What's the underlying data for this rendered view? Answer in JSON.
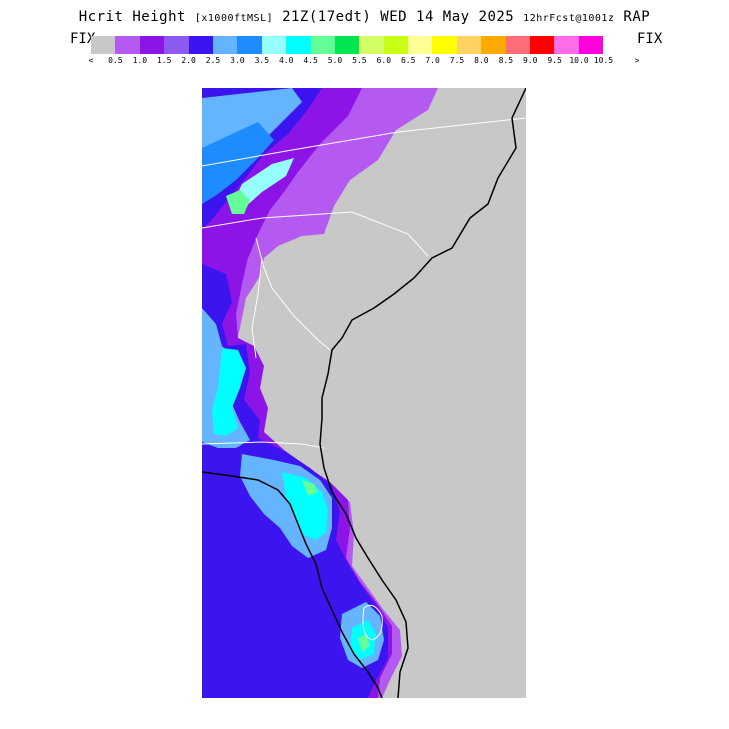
{
  "header": {
    "field_name": "Hcrit Height",
    "units": "[x1000ftMSL]",
    "valid_time": "21Z(17edt)",
    "date": "WED 14 May 2025",
    "forecast": "12hrFcst@1001z",
    "model": "RAP"
  },
  "colorbar": {
    "left_label": "FIX",
    "right_label": "FIX",
    "below_symbol": "<",
    "above_symbol": ">",
    "colors": [
      "#c8c8c8",
      "#b45af0",
      "#8c14e6",
      "#8c5af0",
      "#3c14f0",
      "#64b4ff",
      "#1e8cff",
      "#96ffff",
      "#00ffff",
      "#64ff96",
      "#00e650",
      "#d2ff64",
      "#c8ff14",
      "#ffff96",
      "#ffff00",
      "#ffd264",
      "#ffaa00",
      "#ff6e78",
      "#ff0000",
      "#ff6ee6",
      "#ff00dc"
    ],
    "tick_labels": [
      "0.5",
      "1.0",
      "1.5",
      "2.0",
      "2.5",
      "3.0",
      "3.5",
      "4.0",
      "4.5",
      "5.0",
      "5.5",
      "6.0",
      "6.5",
      "7.0",
      "7.5",
      "8.0",
      "8.5",
      "9.0",
      "9.5",
      "10.0",
      "10.5"
    ]
  },
  "map": {
    "region": "Southeast US",
    "land_color": "#c8c8c8",
    "colors": {
      "band_light_purple": "#b45af0",
      "band_dark_purple": "#8c14e6",
      "band_mid_purple": "#8c5af0",
      "band_blue": "#3c14f0",
      "band_light_blue": "#64b4ff",
      "band_dodger": "#1e8cff",
      "band_pale_cyan": "#96ffff",
      "band_cyan": "#00ffff",
      "band_green": "#64ff96",
      "coast_line": "#000000",
      "state_line": "#ffffff"
    }
  }
}
